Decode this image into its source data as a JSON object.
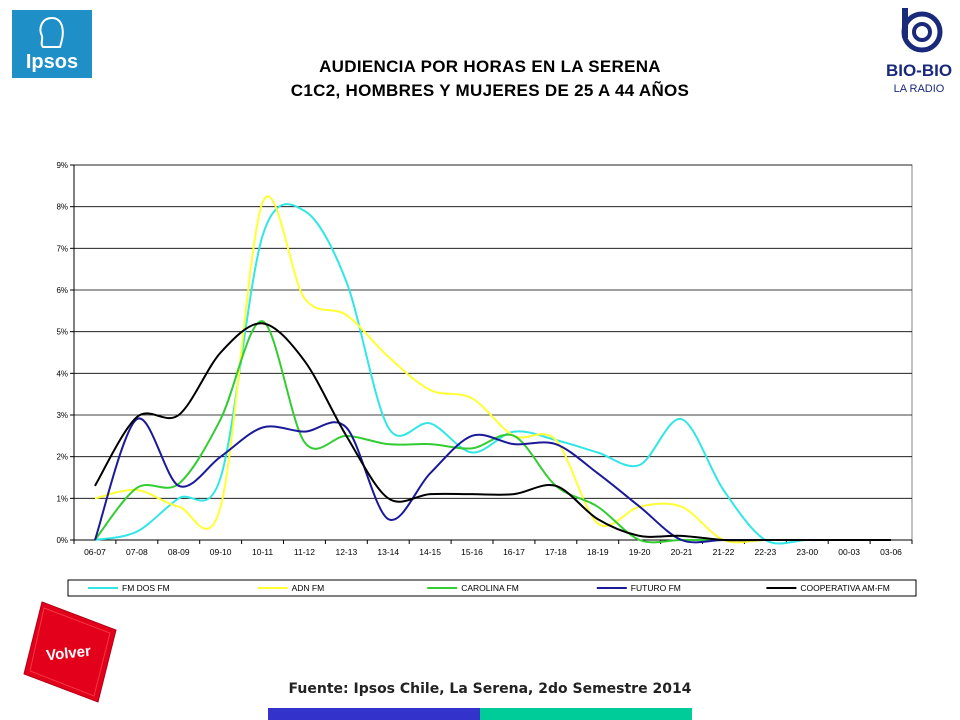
{
  "header": {
    "title_line1": "AUDIENCIA POR HORAS EN LA SERENA",
    "title_line2": "C1C2, HOMBRES Y MUJERES DE 25 A 44 AÑOS"
  },
  "logos": {
    "ipsos_text": "Ipsos",
    "biobio_text": "BIO-BIO",
    "biobio_sub": "LA RADIO"
  },
  "volver_label": "Volver",
  "source_text": "Fuente: Ipsos Chile, La Serena, 2do Semestre 2014",
  "colors": {
    "ipsos_blue": "#1f8fc8",
    "volver_red": "#e3001b",
    "bar_blue": "#3333cc",
    "bar_teal": "#00cc99"
  },
  "chart_data": {
    "type": "line",
    "x": [
      "06-07",
      "07-08",
      "08-09",
      "09-10",
      "10-11",
      "11-12",
      "12-13",
      "13-14",
      "14-15",
      "15-16",
      "16-17",
      "17-18",
      "18-19",
      "19-20",
      "20-21",
      "21-22",
      "22-23",
      "23-00",
      "00-03",
      "03-06"
    ],
    "ylim": [
      0,
      9
    ],
    "yticks": [
      "0%",
      "1%",
      "2%",
      "3%",
      "4%",
      "5%",
      "6%",
      "7%",
      "8%",
      "9%"
    ],
    "grid": true,
    "legend_position": "bottom",
    "series": [
      {
        "name": "FM DOS FM",
        "color": "#33e6e6",
        "values": [
          0.0,
          0.2,
          1.0,
          1.5,
          7.3,
          7.9,
          6.2,
          2.7,
          2.8,
          2.1,
          2.6,
          2.4,
          2.1,
          1.8,
          2.9,
          1.2,
          0.0,
          0.0,
          0.0,
          0.0
        ]
      },
      {
        "name": "ADN FM",
        "color": "#ffff33",
        "values": [
          1.0,
          1.2,
          0.8,
          0.8,
          8.1,
          5.8,
          5.4,
          4.4,
          3.6,
          3.4,
          2.5,
          2.4,
          0.4,
          0.8,
          0.8,
          0.0,
          0.0,
          0.0,
          0.0,
          0.0
        ]
      },
      {
        "name": "CAROLINA FM",
        "color": "#33cc33",
        "values": [
          0.0,
          1.25,
          1.35,
          2.9,
          5.25,
          2.35,
          2.5,
          2.3,
          2.3,
          2.2,
          2.5,
          1.3,
          0.8,
          0.0,
          0.0,
          0.0,
          0.0,
          0.0,
          0.0,
          0.0
        ]
      },
      {
        "name": "FUTURO FM",
        "color": "#1a1a99",
        "values": [
          0.0,
          2.9,
          1.3,
          2.0,
          2.7,
          2.6,
          2.7,
          0.5,
          1.6,
          2.5,
          2.3,
          2.3,
          1.6,
          0.8,
          0.0,
          0.0,
          0.0,
          0.0,
          0.0,
          0.0
        ]
      },
      {
        "name": "COOPERATIVA AM-FM",
        "color": "#000000",
        "values": [
          1.3,
          2.95,
          3.0,
          4.5,
          5.2,
          4.3,
          2.5,
          1.0,
          1.1,
          1.1,
          1.1,
          1.3,
          0.5,
          0.1,
          0.1,
          0.0,
          0.0,
          0.0,
          0.0,
          0.0
        ]
      }
    ]
  }
}
